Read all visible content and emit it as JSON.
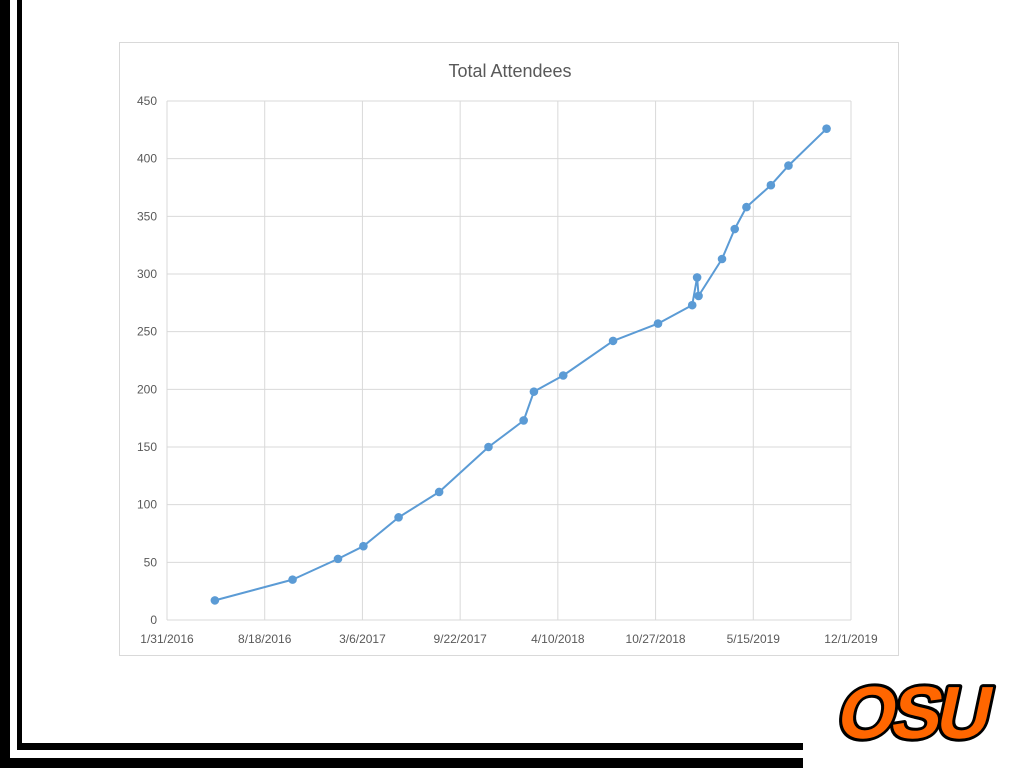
{
  "chart_data": {
    "type": "line",
    "title": "Total Attendees",
    "xlabel": "",
    "ylabel": "",
    "x_axis_type": "date",
    "xlim": [
      "2016-01-31",
      "2019-12-01"
    ],
    "ylim": [
      0,
      450
    ],
    "x_ticks": [
      "1/31/2016",
      "8/18/2016",
      "3/6/2017",
      "9/22/2017",
      "4/10/2018",
      "10/27/2018",
      "5/15/2019",
      "12/1/2019"
    ],
    "y_ticks": [
      0,
      50,
      100,
      150,
      200,
      250,
      300,
      350,
      400,
      450
    ],
    "grid": true,
    "legend": "none",
    "series": [
      {
        "color": "#5b9bd5",
        "points": [
          {
            "x": "2016-05-08",
            "y": 17
          },
          {
            "x": "2016-10-14",
            "y": 35
          },
          {
            "x": "2017-01-15",
            "y": 53
          },
          {
            "x": "2017-03-08",
            "y": 64
          },
          {
            "x": "2017-05-19",
            "y": 89
          },
          {
            "x": "2017-08-10",
            "y": 111
          },
          {
            "x": "2017-11-19",
            "y": 150
          },
          {
            "x": "2018-01-30",
            "y": 173
          },
          {
            "x": "2018-02-20",
            "y": 198
          },
          {
            "x": "2018-04-21",
            "y": 212
          },
          {
            "x": "2018-08-01",
            "y": 242
          },
          {
            "x": "2018-11-01",
            "y": 257
          },
          {
            "x": "2019-01-10",
            "y": 273
          },
          {
            "x": "2019-01-20",
            "y": 297
          },
          {
            "x": "2019-01-23",
            "y": 281
          },
          {
            "x": "2019-03-12",
            "y": 313
          },
          {
            "x": "2019-04-07",
            "y": 339
          },
          {
            "x": "2019-05-01",
            "y": 358
          },
          {
            "x": "2019-06-20",
            "y": 377
          },
          {
            "x": "2019-07-26",
            "y": 394
          },
          {
            "x": "2019-10-12",
            "y": 426
          }
        ]
      }
    ]
  },
  "logo": {
    "text": "OSU",
    "fill": "#ff6600",
    "outline": "#000000"
  },
  "colors": {
    "gridline": "#d9d9d9",
    "tick_label": "#595959",
    "title": "#595959",
    "frame": "#000000"
  }
}
